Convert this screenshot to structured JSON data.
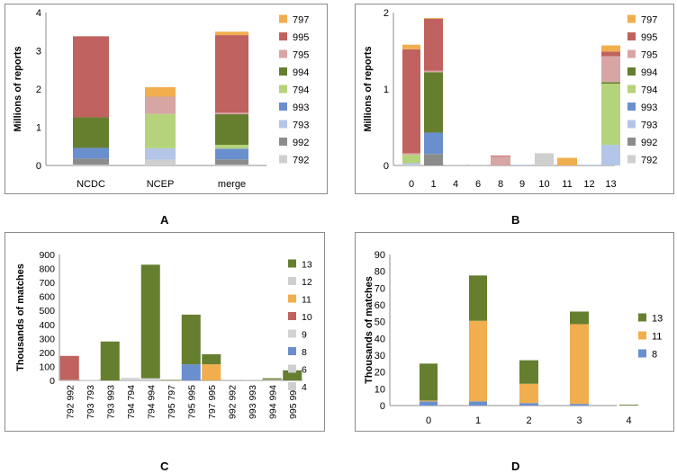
{
  "panel_labels": {
    "A": "A",
    "B": "B",
    "C": "C",
    "D": "D"
  },
  "colors": {
    "792": "#cfcfcf",
    "992": "#8c8c8c",
    "793": "#b3c6e7",
    "993": "#6a8fce",
    "794": "#b5d37a",
    "994": "#657f2f",
    "795": "#d7a6a4",
    "995": "#c0625f",
    "797": "#f1ae4f",
    "4": "#cfcfcf",
    "6": "#cfcfcf",
    "8": "#6a8fce",
    "9": "#d3d3d3",
    "10": "#c0625f",
    "11": "#f1ae4f",
    "12": "#cfcfcf",
    "13": "#657f2f"
  },
  "chart_data": [
    {
      "id": "A",
      "type": "bar",
      "stacked": true,
      "ylabel": "Millions of reports",
      "ylim": [
        0,
        4
      ],
      "yticks": [
        "0",
        "1",
        "2",
        "3",
        "4"
      ],
      "categories": [
        "NCDC",
        "NCEP",
        "merge"
      ],
      "legend": [
        "797",
        "995",
        "795",
        "994",
        "794",
        "993",
        "793",
        "992",
        "792"
      ],
      "series": [
        {
          "name": "792",
          "values": [
            0.02,
            0.15,
            0.02
          ]
        },
        {
          "name": "992",
          "values": [
            0.16,
            0.0,
            0.14
          ]
        },
        {
          "name": "793",
          "values": [
            0.0,
            0.3,
            0.0
          ]
        },
        {
          "name": "993",
          "values": [
            0.28,
            0.0,
            0.28
          ]
        },
        {
          "name": "794",
          "values": [
            0.0,
            0.9,
            0.1
          ]
        },
        {
          "name": "994",
          "values": [
            0.8,
            0.0,
            0.8
          ]
        },
        {
          "name": "795",
          "values": [
            0.0,
            0.45,
            0.04
          ]
        },
        {
          "name": "995",
          "values": [
            2.12,
            0.0,
            2.03
          ]
        },
        {
          "name": "797",
          "values": [
            0.0,
            0.25,
            0.09
          ]
        }
      ]
    },
    {
      "id": "B",
      "type": "bar",
      "stacked": true,
      "ylabel": "Millions of reports",
      "ylim": [
        0,
        2
      ],
      "yticks": [
        "0",
        "1",
        "2"
      ],
      "categories": [
        "0",
        "1",
        "4",
        "6",
        "8",
        "9",
        "10",
        "11",
        "12",
        "13"
      ],
      "legend": [
        "797",
        "995",
        "795",
        "994",
        "794",
        "993",
        "793",
        "992",
        "792"
      ],
      "series": [
        {
          "name": "792",
          "values": [
            0.01,
            0.0,
            0.01,
            0.01,
            0.0,
            0.0,
            0.16,
            0.0,
            0.0,
            0.0
          ]
        },
        {
          "name": "992",
          "values": [
            0.0,
            0.15,
            0.0,
            0.0,
            0.0,
            0.0,
            0.0,
            0.0,
            0.0,
            0.0
          ]
        },
        {
          "name": "793",
          "values": [
            0.02,
            0.0,
            0.0,
            0.0,
            0.0,
            0.01,
            0.0,
            0.0,
            0.01,
            0.27
          ]
        },
        {
          "name": "993",
          "values": [
            0.0,
            0.28,
            0.0,
            0.0,
            0.0,
            0.0,
            0.0,
            0.0,
            0.0,
            0.0
          ]
        },
        {
          "name": "794",
          "values": [
            0.11,
            0.0,
            0.0,
            0.0,
            0.0,
            0.0,
            0.0,
            0.0,
            0.0,
            0.8
          ]
        },
        {
          "name": "994",
          "values": [
            0.0,
            0.79,
            0.0,
            0.0,
            0.0,
            0.0,
            0.0,
            0.0,
            0.0,
            0.02
          ]
        },
        {
          "name": "795",
          "values": [
            0.02,
            0.02,
            0.0,
            0.0,
            0.12,
            0.0,
            0.0,
            0.0,
            0.0,
            0.34
          ]
        },
        {
          "name": "995",
          "values": [
            1.36,
            0.68,
            0.0,
            0.0,
            0.01,
            0.0,
            0.0,
            0.0,
            0.0,
            0.06
          ]
        },
        {
          "name": "797",
          "values": [
            0.06,
            0.01,
            0.0,
            0.0,
            0.0,
            0.0,
            0.0,
            0.1,
            0.0,
            0.08
          ]
        }
      ]
    },
    {
      "id": "C",
      "type": "bar",
      "stacked": true,
      "ylabel": "Thousands of matches",
      "ylim": [
        0,
        900
      ],
      "yticks": [
        "0",
        "100",
        "200",
        "300",
        "400",
        "500",
        "600",
        "700",
        "800",
        "900"
      ],
      "categories": [
        "792 992",
        "793 793",
        "793 993",
        "794 794",
        "794 994",
        "795 797",
        "795 995",
        "797 995",
        "992 992",
        "993 993",
        "994 994",
        "995 995"
      ],
      "legend": [
        "13",
        "12",
        "11",
        "10",
        "9",
        "8",
        "6",
        "4"
      ],
      "series": [
        {
          "name": "4",
          "values": [
            3,
            0,
            0,
            0,
            0,
            0,
            0,
            0,
            0,
            0,
            0,
            0
          ]
        },
        {
          "name": "6",
          "values": [
            0,
            0,
            0,
            0,
            0,
            0,
            0,
            0,
            0,
            0,
            0,
            0
          ]
        },
        {
          "name": "8",
          "values": [
            0,
            0,
            0,
            0,
            0,
            0,
            115,
            0,
            0,
            0,
            0,
            0
          ]
        },
        {
          "name": "9",
          "values": [
            0,
            3,
            0,
            18,
            15,
            0,
            0,
            0,
            5,
            5,
            5,
            0
          ]
        },
        {
          "name": "10",
          "values": [
            172,
            0,
            0,
            0,
            0,
            0,
            0,
            0,
            0,
            0,
            0,
            0
          ]
        },
        {
          "name": "11",
          "values": [
            0,
            0,
            0,
            0,
            0,
            0,
            0,
            115,
            0,
            0,
            0,
            0
          ]
        },
        {
          "name": "12",
          "values": [
            0,
            0,
            0,
            0,
            0,
            0,
            0,
            0,
            0,
            0,
            0,
            0
          ]
        },
        {
          "name": "13",
          "values": [
            0,
            0,
            278,
            0,
            812,
            3,
            355,
            72,
            0,
            0,
            10,
            72
          ]
        }
      ]
    },
    {
      "id": "D",
      "type": "bar",
      "stacked": true,
      "ylabel": "Thousands of matches",
      "ylim": [
        0,
        90
      ],
      "yticks": [
        "0",
        "10",
        "20",
        "30",
        "40",
        "50",
        "60",
        "70",
        "80",
        "90"
      ],
      "categories": [
        "0",
        "1",
        "2",
        "3",
        "4"
      ],
      "legend": [
        "13",
        "11",
        "8"
      ],
      "series": [
        {
          "name": "8",
          "values": [
            2.5,
            2.5,
            1.5,
            1.0,
            0.0
          ]
        },
        {
          "name": "11",
          "values": [
            0.5,
            48.0,
            11.5,
            47.5,
            0.0
          ]
        },
        {
          "name": "13",
          "values": [
            22.0,
            27.0,
            14.0,
            7.5,
            0.5
          ]
        }
      ]
    }
  ]
}
